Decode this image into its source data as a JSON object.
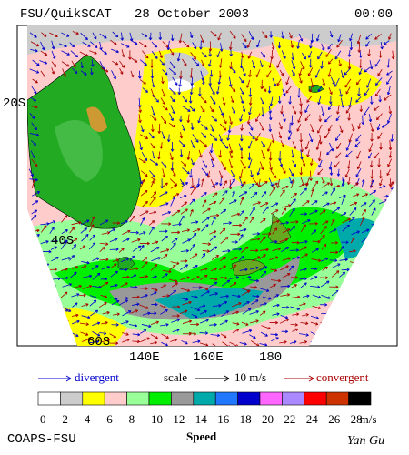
{
  "header": {
    "title": "FSU/QuikSCAT   28 October 2003",
    "time": "00:00"
  },
  "map": {
    "lat_labels": [
      "20S",
      "40S",
      "60S"
    ],
    "lon_labels": [
      "140E",
      "160E",
      "180"
    ]
  },
  "legend": {
    "divergent": "divergent",
    "scale": "scale",
    "scale_value": "10 m/s",
    "convergent": "convergent"
  },
  "colorbar": {
    "colors": [
      "#ffffff",
      "#cccccc",
      "#ffff00",
      "#ffcccc",
      "#99ff99",
      "#00ee00",
      "#999999",
      "#00aaaa",
      "#2277ff",
      "#0000cc",
      "#ff66ff",
      "#aa88ff",
      "#ff0000",
      "#cc3300",
      "#000000"
    ],
    "labels": [
      "0",
      "2",
      "4",
      "6",
      "8",
      "10",
      "12",
      "14",
      "16",
      "18",
      "20",
      "22",
      "24",
      "26",
      "28"
    ],
    "unit": "m/s",
    "title": "Speed"
  },
  "footer": {
    "left": "COAPS-FSU",
    "right": "Yan Gu"
  }
}
